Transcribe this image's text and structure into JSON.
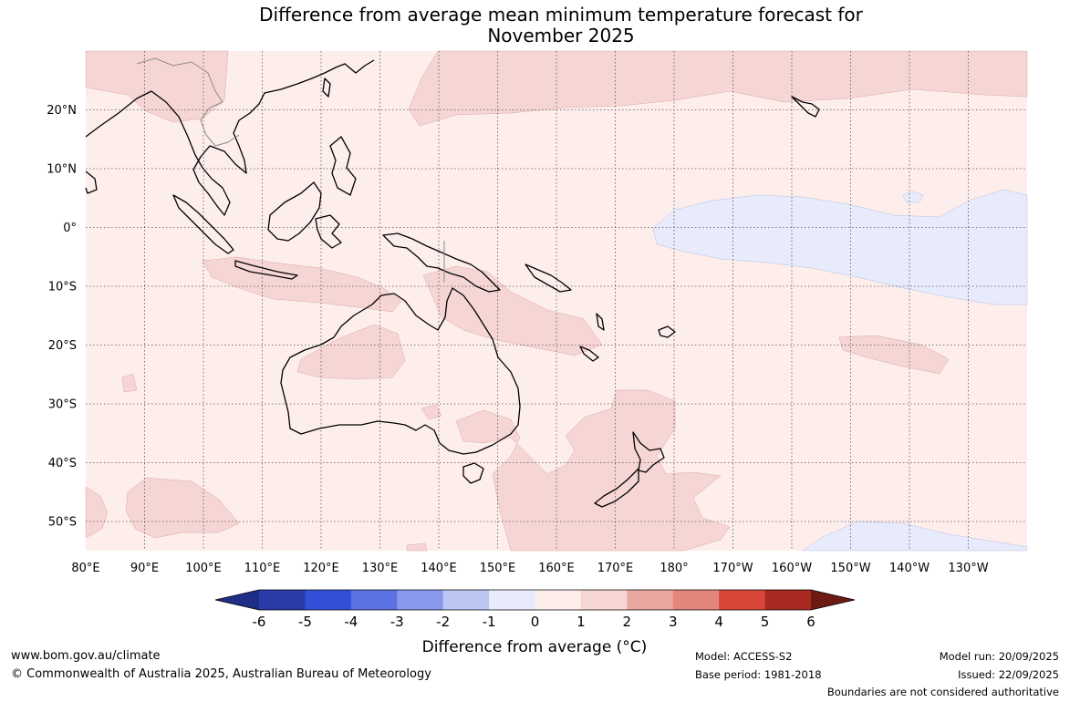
{
  "title_line1": "Difference from average mean minimum temperature forecast for",
  "title_line2": "November 2025",
  "colorbar": {
    "label": "Difference from average (°C)",
    "ticks": [
      "-6",
      "-5",
      "-4",
      "-3",
      "-2",
      "-1",
      "0",
      "1",
      "2",
      "3",
      "4",
      "5",
      "6"
    ],
    "colors": [
      "#2a3aa8",
      "#3450d8",
      "#5a72e2",
      "#8898ea",
      "#bcc6f3",
      "#e7ebfb",
      "#fdeeec",
      "#f6d6d4",
      "#eaa79f",
      "#e2857a",
      "#d8463a",
      "#a82a22"
    ],
    "under_color": "#1f2d87",
    "over_color": "#6e1a14"
  },
  "longitude_labels": [
    "80°E",
    "90°E",
    "100°E",
    "110°E",
    "120°E",
    "130°E",
    "140°E",
    "150°E",
    "160°E",
    "170°E",
    "180°",
    "170°W",
    "160°W",
    "150°W",
    "140°W",
    "130°W"
  ],
  "latitude_labels": [
    "20°N",
    "10°N",
    "0°",
    "10°S",
    "20°S",
    "30°S",
    "40°S",
    "50°S"
  ],
  "legend_colors": {
    "background_anomaly_0_to_1": "#fdeeec",
    "anomaly_1_to_2": "#f6d6d4",
    "anomaly_minus1_to_0": "#e7ebfb",
    "land_outline": "#000000"
  },
  "footer": {
    "site_url": "www.bom.gov.au/climate",
    "copyright": "© Commonwealth of Australia 2025, Australian Bureau of Meteorology",
    "model": "Model: ACCESS-S2",
    "base_period": "Base period: 1981-2018",
    "model_run": "Model run: 20/09/2025",
    "issued": "Issued: 22/09/2025",
    "boundaries_note": "Boundaries are not considered authoritative"
  }
}
